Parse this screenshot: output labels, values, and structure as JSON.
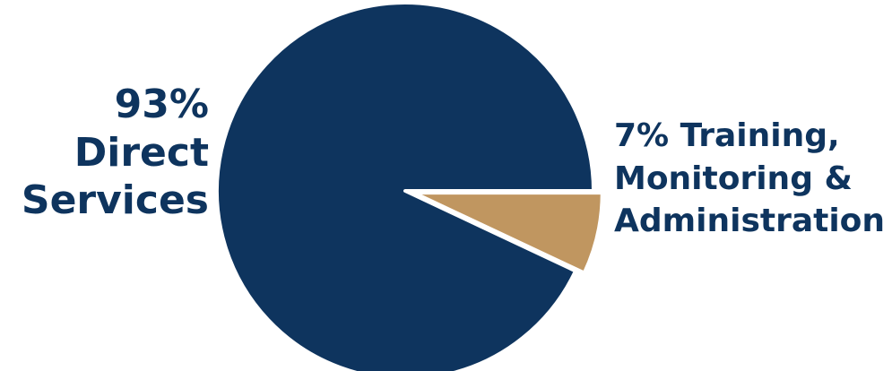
{
  "chart_data": {
    "type": "pie",
    "slices": [
      {
        "label_lines": [
          "93%",
          "Direct",
          "Services"
        ],
        "value": 93,
        "color": "#0e345e"
      },
      {
        "label_lines": [
          "7% Training,",
          "Monitoring &",
          "Administration"
        ],
        "value": 7,
        "color": "#c09660"
      }
    ],
    "start_angle_deg": 0,
    "direction": "counterclockwise",
    "explode_slice": 1,
    "legend": "none",
    "label_color": "#0e345e",
    "edge_color": "#ffffff"
  }
}
